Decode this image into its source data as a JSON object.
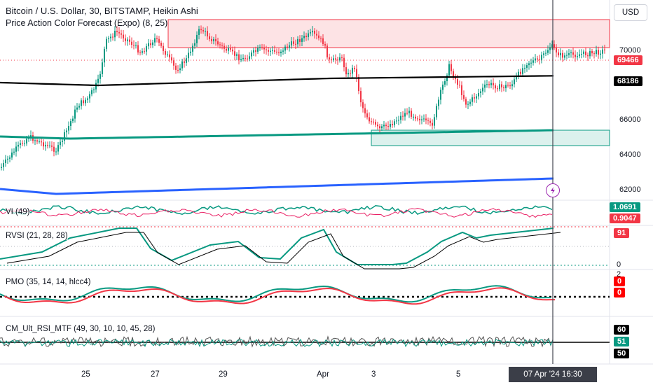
{
  "header": {
    "symbol_title": "Bitcoin / U.S. Dollar, 30, BITSTAMP, Heikin Ashi",
    "indicator_title": "Price Action Color Forecast (Expo) (8, 25)",
    "currency_button": "USD"
  },
  "price_axis": {
    "ticks": [
      "70000",
      "66000",
      "64000",
      "62000"
    ],
    "tags": [
      {
        "text": "69466",
        "bg": "#f23645",
        "fg": "#ffffff"
      },
      {
        "text": "68186",
        "bg": "#000000",
        "fg": "#ffffff"
      }
    ]
  },
  "panes": {
    "vi": {
      "label": "VI (49)",
      "tags": [
        {
          "text": "1.0691",
          "bg": "#089981",
          "fg": "#ffffff"
        },
        {
          "text": "0.9047",
          "bg": "#f23645",
          "fg": "#ffffff"
        }
      ]
    },
    "rvsi": {
      "label": "RVSI (21, 28, 28)",
      "tag": {
        "text": "91",
        "bg": "#f23645",
        "fg": "#ffffff"
      },
      "axis_bottom": "0"
    },
    "pmo": {
      "label": "PMO (35, 14, 14, hlcc4)",
      "axis_top": "2",
      "tags": [
        {
          "text": "0",
          "bg": "#ff0000",
          "fg": "#ffffff"
        },
        {
          "text": "0",
          "bg": "#ff0000",
          "fg": "#ffffff"
        }
      ]
    },
    "cm": {
      "label": "CM_Ult_RSI_MTF (49, 30, 10, 10, 45, 28)",
      "tags": [
        {
          "text": "60",
          "bg": "#000000",
          "fg": "#ffffff"
        },
        {
          "text": "51",
          "bg": "#089981",
          "fg": "#ffffff"
        },
        {
          "text": "50",
          "bg": "#000000",
          "fg": "#ffffff"
        }
      ]
    }
  },
  "time_axis": {
    "labels": [
      "25",
      "27",
      "29",
      "Apr",
      "3",
      "5"
    ],
    "cursor_label": "07 Apr '24   16:30"
  },
  "colors": {
    "bull": "#089981",
    "bear": "#f23645",
    "ma_black": "#000000",
    "ma_green": "#089981",
    "ma_blue": "#2962ff",
    "resistance_zone": "#f23645",
    "support_zone": "#089981"
  },
  "icons": {
    "alert": "lightning-icon"
  }
}
